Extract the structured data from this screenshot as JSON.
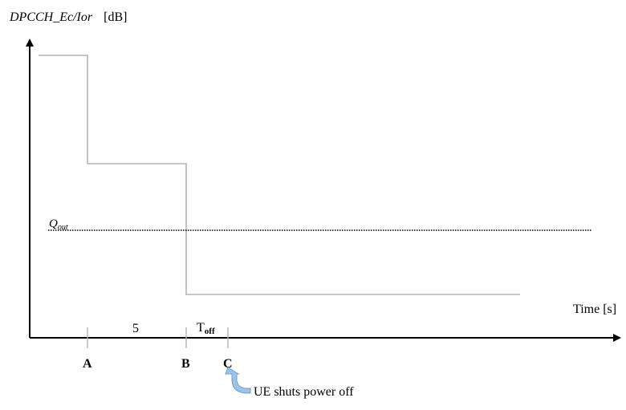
{
  "y_axis": {
    "title_signal": "DPCCH_Ec/Ior",
    "title_unit": "[dB]"
  },
  "x_axis": {
    "title": "Time [s]"
  },
  "threshold": {
    "symbol": "Q",
    "subscript": "out"
  },
  "time_points": [
    "A",
    "B",
    "C"
  ],
  "interval_labels": {
    "a_to_b": "5",
    "b_to_c_symbol": "T",
    "b_to_c_subscript": "off"
  },
  "event": {
    "label": "UE shuts power off",
    "arrow_color": "#9dc3e6",
    "arrow_stroke": "#6a9ccc"
  },
  "colors": {
    "axis": "#000000",
    "signal": "#b3b3b3",
    "threshold": "#000000"
  }
}
